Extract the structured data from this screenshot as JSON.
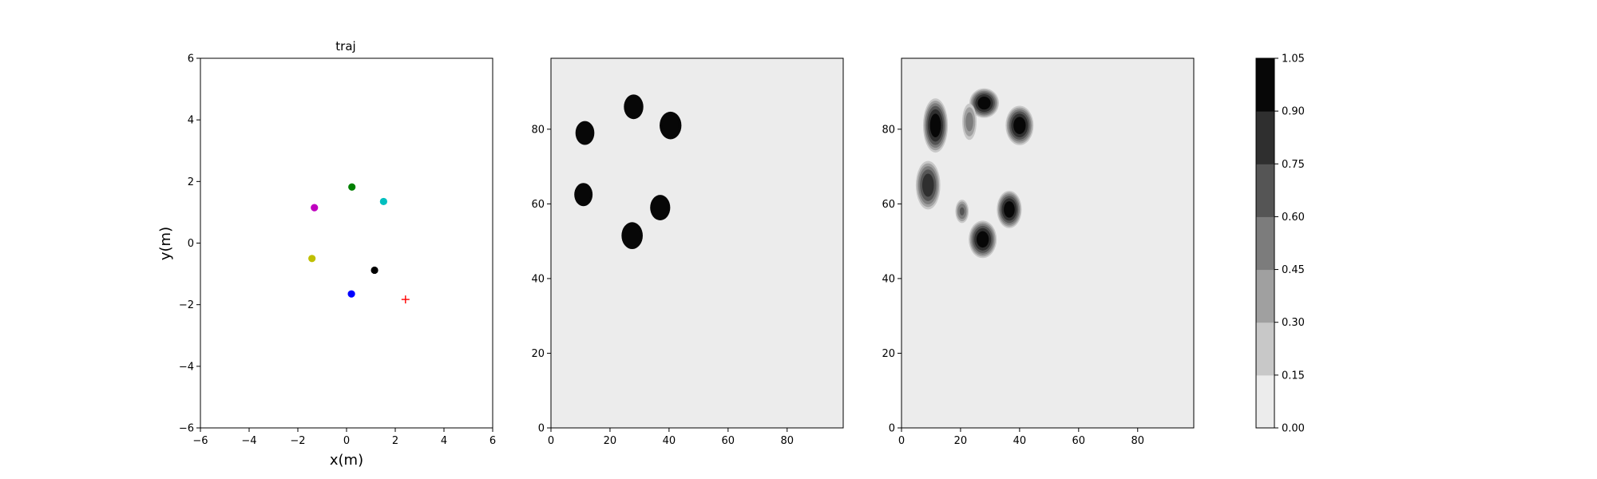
{
  "chart_data": [
    {
      "type": "scatter",
      "title": "traj",
      "xlabel": "x(m)",
      "ylabel": "y(m)",
      "xlim": [
        -6,
        6
      ],
      "ylim": [
        -6,
        6
      ],
      "xticks": [
        -6,
        -4,
        -2,
        0,
        2,
        4,
        6
      ],
      "yticks": [
        -6,
        -4,
        -2,
        0,
        2,
        4,
        6
      ],
      "grid": false,
      "points": [
        {
          "x": 0.22,
          "y": 1.82,
          "color": "#008000",
          "marker": "circle"
        },
        {
          "x": 1.52,
          "y": 1.35,
          "color": "#00bfbf",
          "marker": "circle"
        },
        {
          "x": -1.32,
          "y": 1.15,
          "color": "#bf00bf",
          "marker": "circle"
        },
        {
          "x": -1.42,
          "y": -0.5,
          "color": "#bfbf00",
          "marker": "circle"
        },
        {
          "x": 1.15,
          "y": -0.88,
          "color": "#000000",
          "marker": "circle"
        },
        {
          "x": 0.2,
          "y": -1.65,
          "color": "#0000ff",
          "marker": "circle"
        },
        {
          "x": 2.42,
          "y": -1.83,
          "color": "#ff0000",
          "marker": "plus"
        }
      ]
    },
    {
      "type": "heatmap",
      "title": "",
      "xlim": [
        0,
        99
      ],
      "ylim": [
        0,
        99
      ],
      "xticks": [
        0,
        20,
        40,
        60,
        80
      ],
      "yticks": [
        0,
        20,
        40,
        60,
        80
      ],
      "background_level": 0.075,
      "blobs": [
        {
          "x": 11.5,
          "y": 79,
          "r": 3.2
        },
        {
          "x": 28,
          "y": 86,
          "r": 3.3
        },
        {
          "x": 40.5,
          "y": 81,
          "r": 3.7
        },
        {
          "x": 11,
          "y": 62.5,
          "r": 3.1
        },
        {
          "x": 37,
          "y": 59,
          "r": 3.4
        },
        {
          "x": 27.5,
          "y": 51.5,
          "r": 3.6
        }
      ]
    },
    {
      "type": "heatmap",
      "title": "",
      "xlim": [
        0,
        99
      ],
      "ylim": [
        0,
        99
      ],
      "xticks": [
        0,
        20,
        40,
        60,
        80
      ],
      "yticks": [
        0,
        20,
        40,
        60,
        80
      ],
      "background_level": 0.075,
      "blobs": [
        {
          "x": 11.5,
          "y": 81,
          "rx": 3.2,
          "ry": 5.5,
          "peak": 1.0
        },
        {
          "x": 28,
          "y": 87,
          "rx": 3.8,
          "ry": 3.0,
          "peak": 1.0
        },
        {
          "x": 23,
          "y": 82,
          "rx": 2.0,
          "ry": 4.0,
          "peak": 0.5
        },
        {
          "x": 40,
          "y": 81,
          "rx": 3.6,
          "ry": 4.0,
          "peak": 1.0
        },
        {
          "x": 9,
          "y": 65,
          "rx": 3.2,
          "ry": 5.0,
          "peak": 0.85
        },
        {
          "x": 20.5,
          "y": 58,
          "rx": 1.8,
          "ry": 2.5,
          "peak": 0.6
        },
        {
          "x": 36.5,
          "y": 58.5,
          "rx": 3.2,
          "ry": 3.8,
          "peak": 1.0
        },
        {
          "x": 27.5,
          "y": 50.5,
          "rx": 3.6,
          "ry": 3.8,
          "peak": 1.0
        }
      ]
    }
  ],
  "colorbar": {
    "min": 0.0,
    "max": 1.05,
    "levels": [
      "0.00",
      "0.15",
      "0.30",
      "0.45",
      "0.60",
      "0.75",
      "0.90",
      "1.05"
    ],
    "colors": [
      "#ececec",
      "#c8c8c8",
      "#a0a0a0",
      "#7c7c7c",
      "#555555",
      "#2f2f2f",
      "#070707"
    ]
  }
}
